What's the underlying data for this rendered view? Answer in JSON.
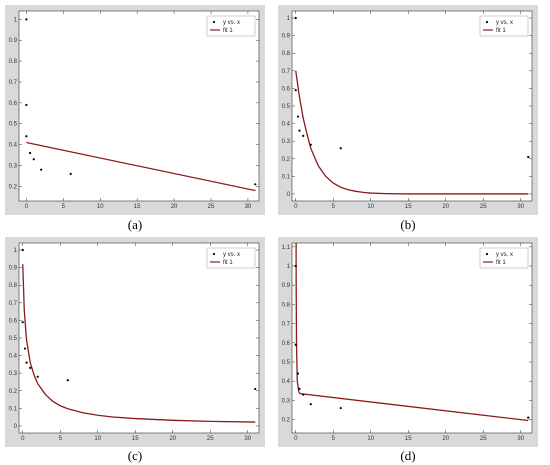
{
  "colors": {
    "frame": "#d9d9d9",
    "plot_bg": "#ffffff",
    "axis": "#333333",
    "fit": "#8b1a1a",
    "points": "#000000"
  },
  "chart_data": [
    {
      "type": "scatter",
      "caption": "(a)",
      "xlim": [
        -1,
        31.5
      ],
      "ylim": [
        0.13,
        1.04
      ],
      "xticks": [
        0,
        5,
        10,
        15,
        20,
        25,
        30
      ],
      "xtick_labels": [
        "0",
        "5",
        "10",
        "15",
        "20",
        "25",
        "30"
      ],
      "yticks": [
        0.2,
        0.3,
        0.4,
        0.5,
        0.6,
        0.7,
        0.8,
        0.9,
        1
      ],
      "ytick_labels": [
        "0.2",
        "0.3",
        "0.4",
        "0.5",
        "0.6",
        "0.7",
        "0.8",
        "0.9",
        "1"
      ],
      "legend": [
        "y vs. x",
        "fit 1"
      ],
      "legend_position": "top-right",
      "series": [
        {
          "name": "y vs. x",
          "kind": "points",
          "x": [
            0,
            0,
            0,
            0.5,
            1,
            2,
            6,
            31
          ],
          "y": [
            1.0,
            0.59,
            0.44,
            0.36,
            0.33,
            0.28,
            0.26,
            0.21
          ]
        },
        {
          "name": "fit 1",
          "kind": "line",
          "x": [
            0,
            31
          ],
          "y": [
            0.41,
            0.18
          ]
        }
      ]
    },
    {
      "type": "scatter",
      "caption": "(b)",
      "xlim": [
        -0.5,
        31.5
      ],
      "ylim": [
        -0.04,
        1.04
      ],
      "xticks": [
        0,
        5,
        10,
        15,
        20,
        25,
        30
      ],
      "xtick_labels": [
        "0",
        "5",
        "10",
        "15",
        "20",
        "25",
        "30"
      ],
      "yticks": [
        0,
        0.1,
        0.2,
        0.3,
        0.4,
        0.5,
        0.6,
        0.7,
        0.8,
        0.9,
        1
      ],
      "ytick_labels": [
        "0",
        "0.1",
        "0.2",
        "0.3",
        "0.4",
        "0.5",
        "0.6",
        "0.7",
        "0.8",
        "0.9",
        "1"
      ],
      "legend": [
        "y vs. x",
        "fit 1"
      ],
      "legend_position": "top-right",
      "series": [
        {
          "name": "y vs. x",
          "kind": "points",
          "x": [
            0,
            0,
            0.3,
            0.5,
            1,
            2,
            6,
            31
          ],
          "y": [
            1.0,
            0.59,
            0.44,
            0.36,
            0.33,
            0.28,
            0.26,
            0.21
          ]
        },
        {
          "name": "fit 1",
          "kind": "line",
          "x": [
            0,
            0.5,
            1,
            1.5,
            2,
            2.5,
            3,
            3.5,
            4,
            5,
            6,
            7,
            8,
            9,
            10,
            12,
            15,
            20,
            25,
            31
          ],
          "y": [
            0.7,
            0.55,
            0.43,
            0.34,
            0.26,
            0.21,
            0.16,
            0.13,
            0.1,
            0.062,
            0.038,
            0.024,
            0.015,
            0.009,
            0.005,
            0.002,
            0,
            0,
            0,
            0
          ]
        }
      ]
    },
    {
      "type": "scatter",
      "caption": "(c)",
      "xlim": [
        -0.5,
        31.5
      ],
      "ylim": [
        -0.04,
        1.04
      ],
      "xticks": [
        0,
        5,
        10,
        15,
        20,
        25,
        30
      ],
      "xtick_labels": [
        "0",
        "5",
        "10",
        "15",
        "20",
        "25",
        "30"
      ],
      "yticks": [
        0,
        0.1,
        0.2,
        0.3,
        0.4,
        0.5,
        0.6,
        0.7,
        0.8,
        0.9,
        1
      ],
      "ytick_labels": [
        "0",
        "0.1",
        "0.2",
        "0.3",
        "0.4",
        "0.5",
        "0.6",
        "0.7",
        "0.8",
        "0.9",
        "1"
      ],
      "legend": [
        "y vs. x",
        "fit 1"
      ],
      "legend_position": "top-right",
      "series": [
        {
          "name": "y vs. x",
          "kind": "points",
          "x": [
            0,
            0,
            0.3,
            0.5,
            1,
            2,
            6,
            31
          ],
          "y": [
            1.0,
            0.59,
            0.44,
            0.36,
            0.33,
            0.28,
            0.26,
            0.21
          ]
        },
        {
          "name": "fit 1",
          "kind": "line",
          "x": [
            0,
            0.2,
            0.5,
            1,
            1.5,
            2,
            3,
            4,
            5,
            6,
            8,
            10,
            12,
            15,
            20,
            25,
            31
          ],
          "y": [
            0.92,
            0.66,
            0.49,
            0.36,
            0.29,
            0.24,
            0.18,
            0.14,
            0.115,
            0.098,
            0.075,
            0.061,
            0.051,
            0.042,
            0.032,
            0.026,
            0.022
          ]
        }
      ]
    },
    {
      "type": "scatter",
      "caption": "(d)",
      "xlim": [
        -0.5,
        31.5
      ],
      "ylim": [
        0.13,
        1.12
      ],
      "xticks": [
        0,
        5,
        10,
        15,
        20,
        25,
        30
      ],
      "xtick_labels": [
        "0",
        "5",
        "10",
        "15",
        "20",
        "25",
        "30"
      ],
      "yticks": [
        0.2,
        0.3,
        0.4,
        0.5,
        0.6,
        0.7,
        0.8,
        0.9,
        1,
        1.1
      ],
      "ytick_labels": [
        "0.2",
        "0.3",
        "0.4",
        "0.5",
        "0.6",
        "0.7",
        "0.8",
        "0.9",
        "1",
        "1.1"
      ],
      "legend": [
        "y vs. x",
        "fit 1"
      ],
      "legend_position": "top-right",
      "series": [
        {
          "name": "y vs. x",
          "kind": "points",
          "x": [
            0,
            0,
            0.3,
            0.5,
            1,
            2,
            6,
            31
          ],
          "y": [
            1.0,
            0.59,
            0.44,
            0.36,
            0.33,
            0.28,
            0.26,
            0.21
          ]
        },
        {
          "name": "fit 1",
          "kind": "line",
          "x": [
            0.05,
            0.05,
            0.1,
            0.2,
            0.4,
            0.6,
            31
          ],
          "y": [
            1.12,
            0.95,
            0.6,
            0.4,
            0.345,
            0.335,
            0.195
          ]
        }
      ]
    }
  ]
}
